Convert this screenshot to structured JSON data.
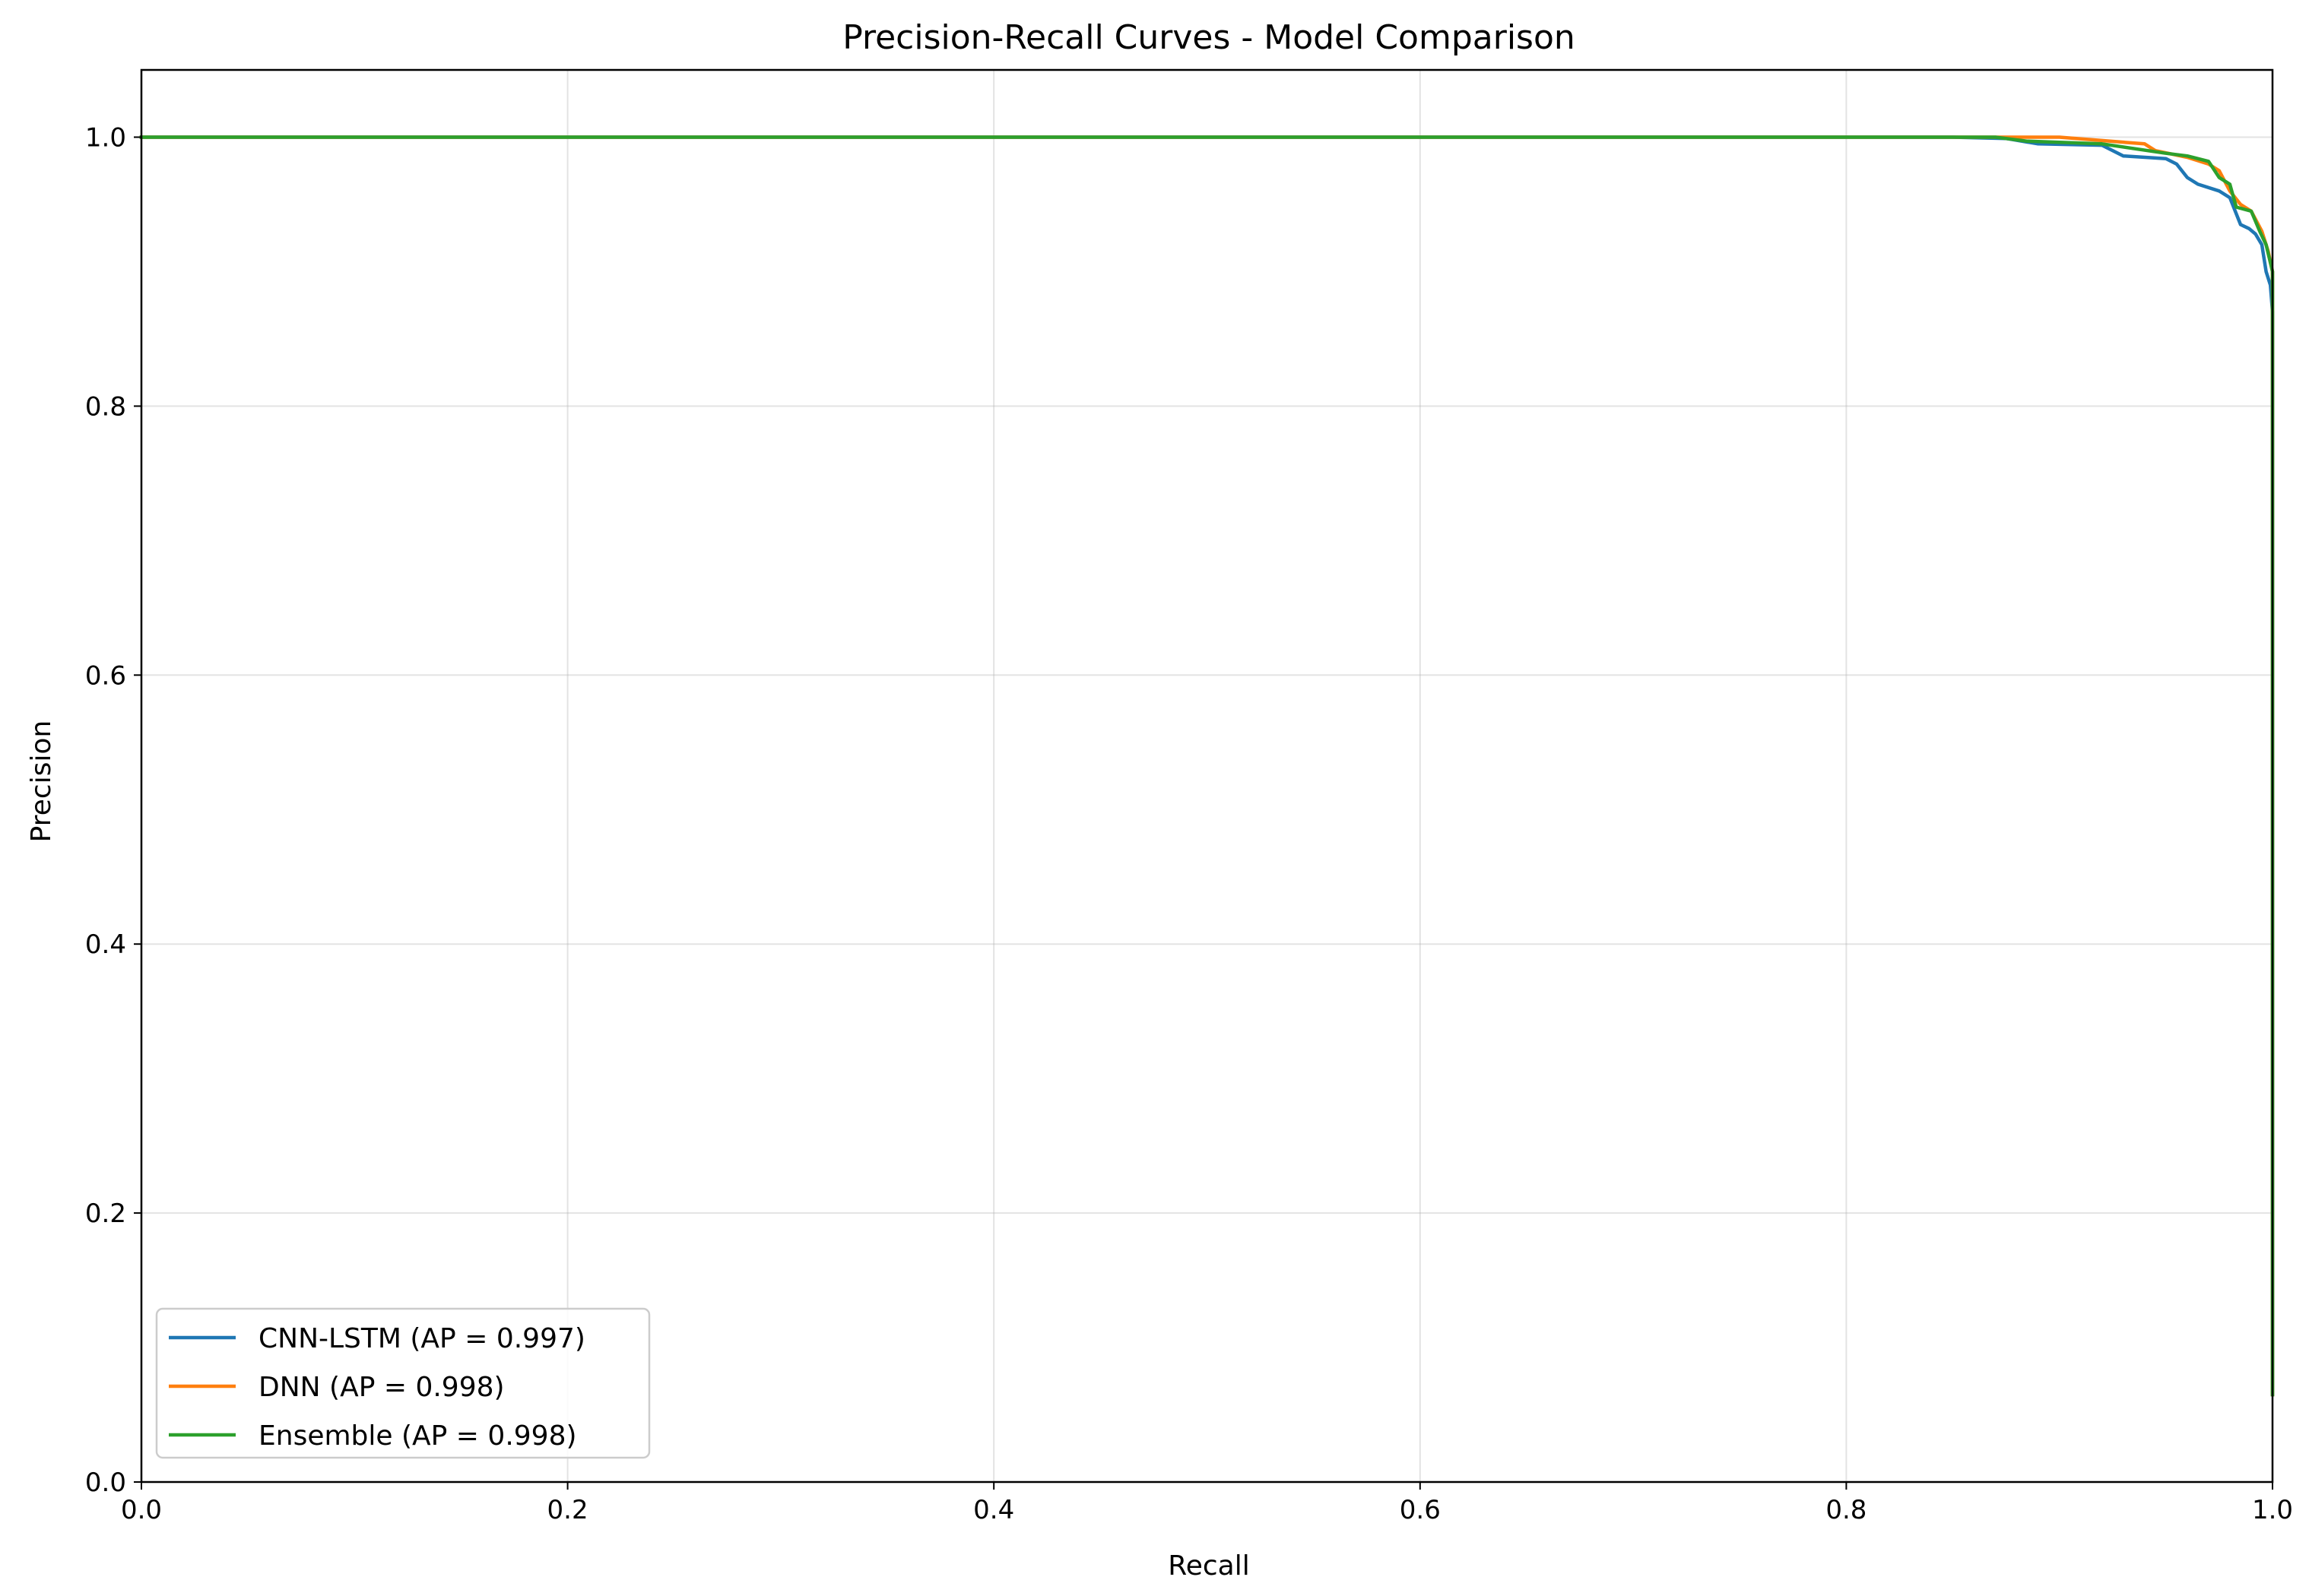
{
  "chart_data": {
    "type": "line",
    "title": "Precision-Recall Curves - Model Comparison",
    "xlabel": "Recall",
    "ylabel": "Precision",
    "xlim": [
      0.0,
      1.0
    ],
    "ylim": [
      0.0,
      1.05
    ],
    "x_ticks": [
      "0.0",
      "0.2",
      "0.4",
      "0.6",
      "0.8",
      "1.0"
    ],
    "y_ticks": [
      "0.0",
      "0.2",
      "0.4",
      "0.6",
      "0.8",
      "1.0"
    ],
    "grid": true,
    "legend_position": "lower-left",
    "series": [
      {
        "name": "CNN-LSTM (AP = 0.997)",
        "color": "#1f77b4",
        "x": [
          0.0,
          0.85,
          0.875,
          0.89,
          0.92,
          0.93,
          0.95,
          0.955,
          0.96,
          0.965,
          0.975,
          0.98,
          0.985,
          0.989,
          0.992,
          0.995,
          0.997,
          0.999,
          1.0,
          1.0
        ],
        "y": [
          1.0,
          1.0,
          0.999,
          0.995,
          0.994,
          0.986,
          0.984,
          0.98,
          0.97,
          0.965,
          0.96,
          0.955,
          0.935,
          0.932,
          0.928,
          0.92,
          0.9,
          0.89,
          0.87,
          0.065
        ]
      },
      {
        "name": "DNN (AP = 0.998)",
        "color": "#ff7f0e",
        "x": [
          0.0,
          0.88,
          0.9,
          0.94,
          0.945,
          0.96,
          0.97,
          0.975,
          0.98,
          0.985,
          0.99,
          0.995,
          0.998,
          1.0,
          1.0
        ],
        "y": [
          1.0,
          1.0,
          1.0,
          0.995,
          0.99,
          0.985,
          0.98,
          0.975,
          0.96,
          0.95,
          0.945,
          0.93,
          0.915,
          0.9,
          0.065
        ]
      },
      {
        "name": "Ensemble (AP = 0.998)",
        "color": "#2ca02c",
        "x": [
          0.0,
          0.87,
          0.885,
          0.92,
          0.95,
          0.96,
          0.97,
          0.975,
          0.98,
          0.983,
          0.99,
          0.994,
          0.997,
          1.0,
          1.0
        ],
        "y": [
          1.0,
          1.0,
          0.997,
          0.995,
          0.988,
          0.986,
          0.982,
          0.97,
          0.965,
          0.948,
          0.945,
          0.93,
          0.92,
          0.9,
          0.065
        ]
      }
    ]
  }
}
